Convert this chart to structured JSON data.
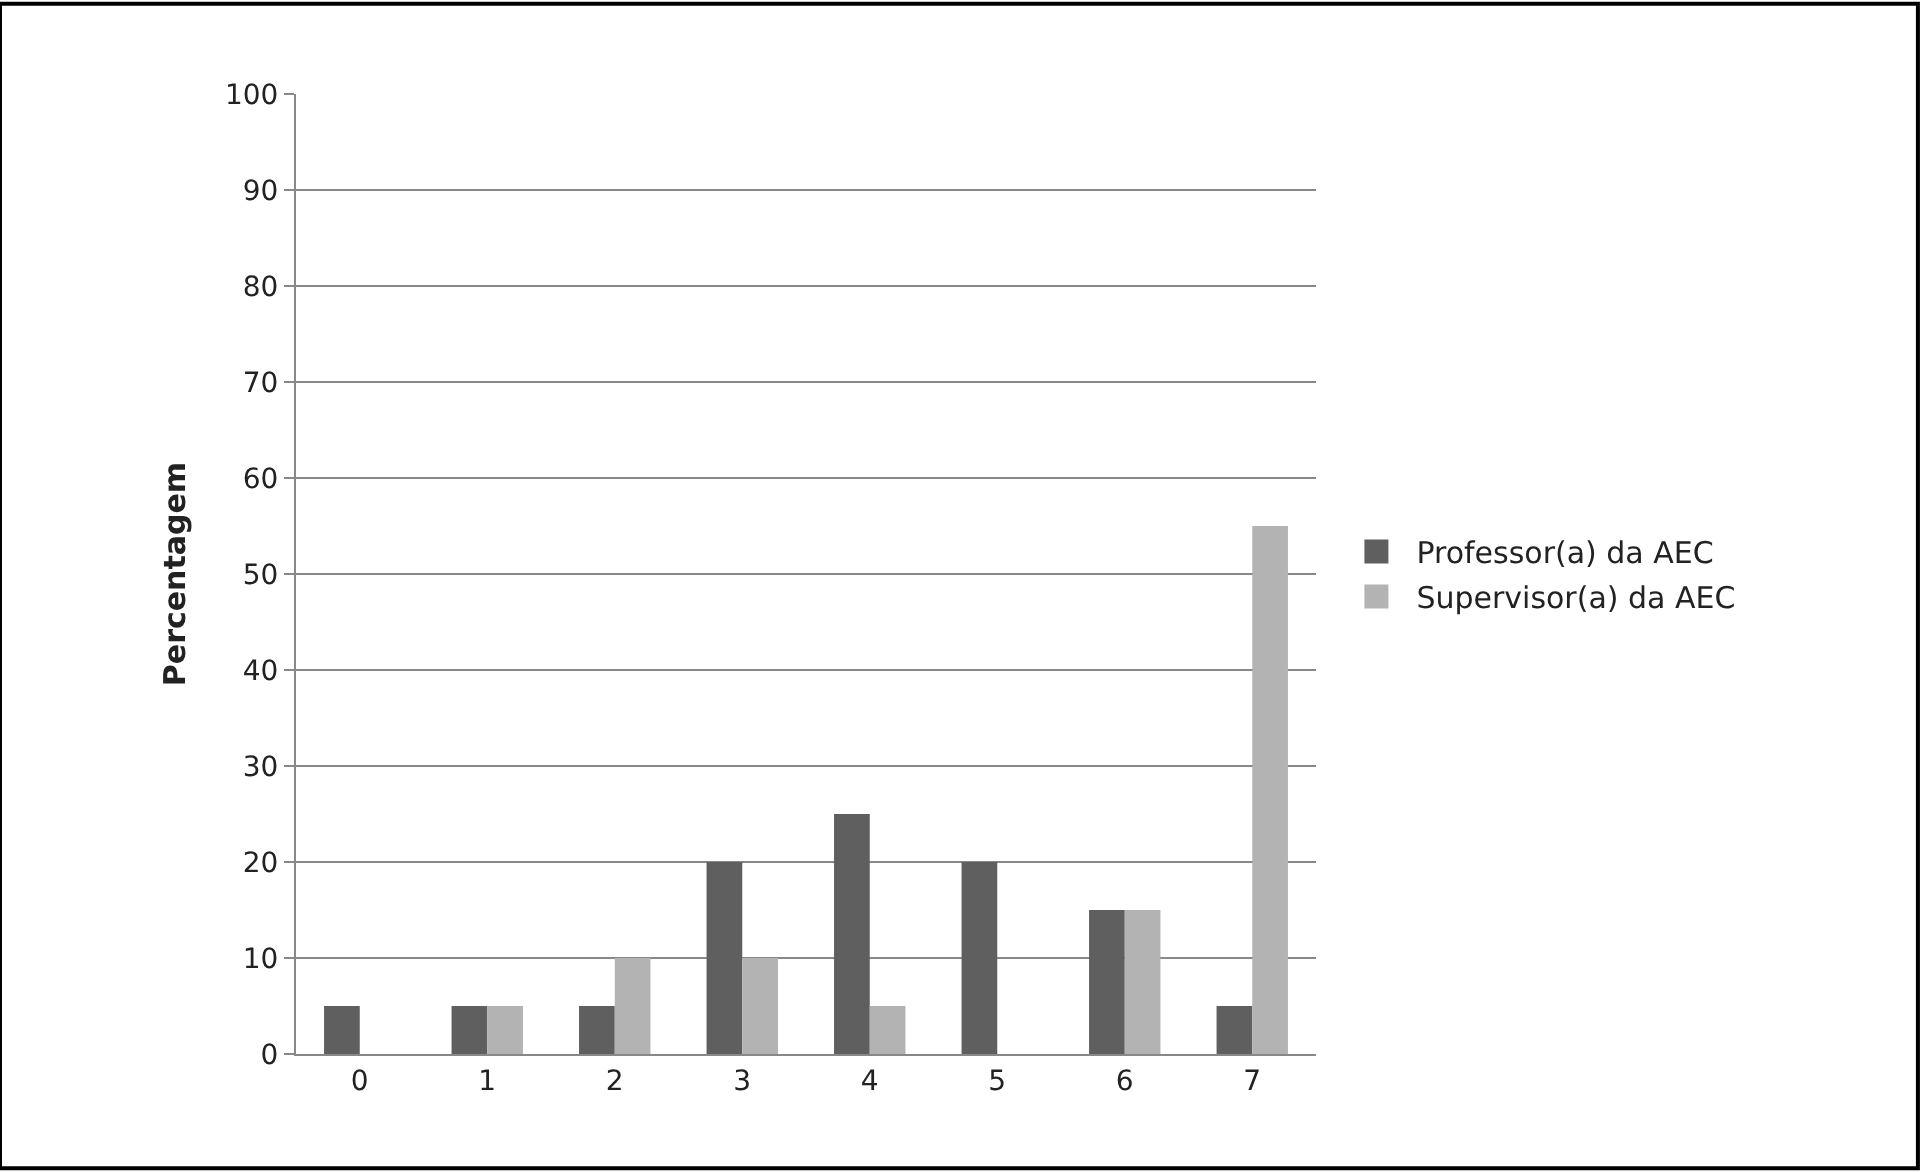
{
  "chart_data": {
    "type": "bar",
    "ylabel": "Percentagem",
    "categories": [
      "0",
      "1",
      "2",
      "3",
      "4",
      "5",
      "6",
      "7"
    ],
    "series": [
      {
        "name": "Professor(a) da AEC",
        "color": "#5f5f5f",
        "values": [
          5,
          5,
          5,
          20,
          25,
          20,
          15,
          5
        ]
      },
      {
        "name": "Supervisor(a) da AEC",
        "color": "#b3b3b3",
        "values": [
          0,
          5,
          10,
          10,
          5,
          0,
          15,
          55
        ]
      }
    ],
    "ylim": [
      0,
      100
    ],
    "yticks": [
      0,
      10,
      20,
      30,
      40,
      50,
      60,
      70,
      80,
      90,
      100
    ],
    "grid": "y",
    "legend": "right"
  }
}
